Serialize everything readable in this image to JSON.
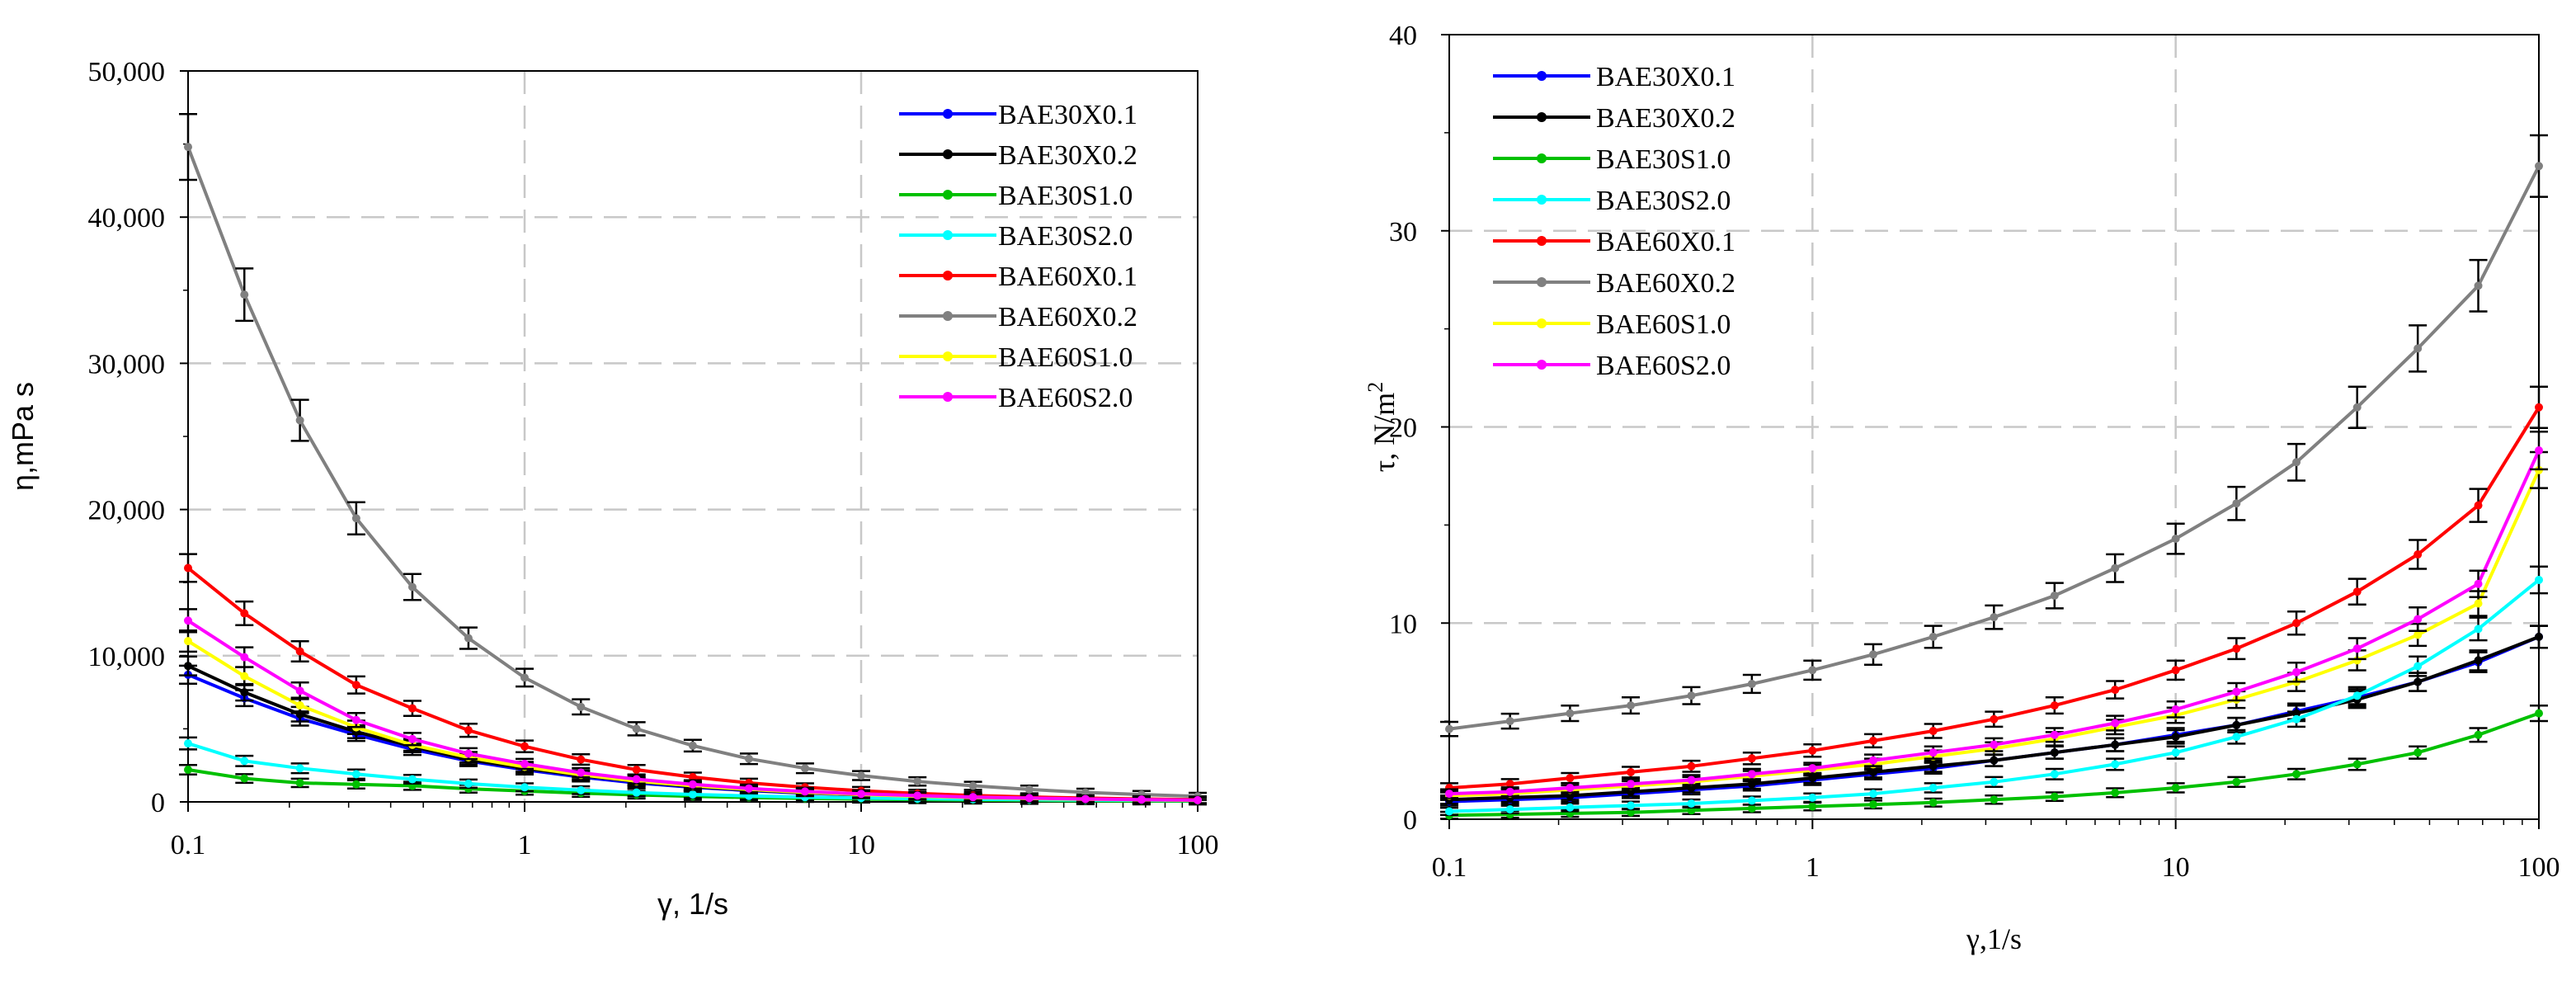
{
  "chart_data": [
    {
      "type": "line",
      "ylabel": "η,mPa s",
      "xlabel": "γ, 1/s",
      "xscale": "log",
      "xlim": [
        0.1,
        100
      ],
      "ylim": [
        0,
        50000
      ],
      "grid": "dashed, at decades and y ticks",
      "legend_position": "top-right",
      "x_ticks": [
        "0.1",
        "1",
        "10",
        "100"
      ],
      "y_ticks": [
        "0",
        "10,000",
        "20,000",
        "30,000",
        "40,000",
        "50,000"
      ],
      "x": [
        0.1,
        0.147,
        0.215,
        0.316,
        0.464,
        0.681,
        1,
        1.47,
        2.15,
        3.16,
        4.64,
        6.81,
        10,
        14.7,
        21.5,
        31.6,
        46.4,
        68.1,
        100
      ],
      "series": [
        {
          "name": "BAE30X0.1",
          "color": "#0000ff",
          "values": [
            8700,
            7100,
            5700,
            4600,
            3600,
            2800,
            2200,
            1700,
            1300,
            1000,
            780,
            600,
            470,
            360,
            280,
            210,
            160,
            120,
            90
          ]
        },
        {
          "name": "BAE30X0.2",
          "color": "#000000",
          "values": [
            9300,
            7500,
            6000,
            4800,
            3800,
            2900,
            2300,
            1800,
            1400,
            1050,
            820,
            630,
            490,
            380,
            290,
            220,
            170,
            130,
            95
          ]
        },
        {
          "name": "BAE30S1.0",
          "color": "#00c000",
          "values": [
            2200,
            1600,
            1300,
            1200,
            1100,
            900,
            750,
            600,
            480,
            380,
            300,
            240,
            190,
            150,
            120,
            95,
            75,
            60,
            55
          ]
        },
        {
          "name": "BAE30S2.0",
          "color": "#00ffff",
          "values": [
            4000,
            2800,
            2300,
            1900,
            1550,
            1250,
            1000,
            800,
            640,
            510,
            410,
            330,
            270,
            220,
            180,
            150,
            125,
            110,
            100
          ]
        },
        {
          "name": "BAE60X0.1",
          "color": "#ff0000",
          "values": [
            16000,
            12900,
            10300,
            8000,
            6400,
            4900,
            3800,
            2900,
            2200,
            1700,
            1300,
            1000,
            760,
            580,
            440,
            340,
            260,
            200,
            150
          ]
        },
        {
          "name": "BAE60X0.2",
          "color": "#808080",
          "values": [
            44800,
            34700,
            26100,
            19400,
            14700,
            11200,
            8500,
            6500,
            5000,
            3850,
            2950,
            2300,
            1800,
            1400,
            1100,
            850,
            650,
            500,
            380
          ]
        },
        {
          "name": "BAE60S1.0",
          "color": "#ffff00",
          "values": [
            11000,
            8600,
            6600,
            5100,
            3900,
            3050,
            2400,
            1850,
            1420,
            1100,
            850,
            650,
            500,
            390,
            300,
            230,
            180,
            140,
            110
          ]
        },
        {
          "name": "BAE60S2.0",
          "color": "#ff00ff",
          "values": [
            12400,
            9900,
            7600,
            5600,
            4300,
            3300,
            2600,
            2000,
            1550,
            1200,
            920,
            710,
            550,
            430,
            330,
            260,
            200,
            160,
            120
          ]
        }
      ]
    },
    {
      "type": "line",
      "ylabel": "τ, N/m",
      "ylabel_sup": "2",
      "xlabel": "γ,1/s",
      "xscale": "log",
      "xlim": [
        0.1,
        100
      ],
      "ylim": [
        0,
        40
      ],
      "grid": "dashed, at decades and y ticks",
      "legend_position": "top-left",
      "x_ticks": [
        "0.1",
        "1",
        "10",
        "100"
      ],
      "y_ticks": [
        "0",
        "10",
        "20",
        "30",
        "40"
      ],
      "x": [
        0.1,
        0.147,
        0.215,
        0.316,
        0.464,
        0.681,
        1,
        1.47,
        2.15,
        3.16,
        4.64,
        6.81,
        10,
        14.7,
        21.5,
        31.6,
        46.4,
        68.1,
        100
      ],
      "series": [
        {
          "name": "BAE30X0.1",
          "color": "#0000ff",
          "values": [
            0.9,
            1.0,
            1.1,
            1.3,
            1.5,
            1.7,
            2.0,
            2.3,
            2.6,
            3.0,
            3.4,
            3.8,
            4.3,
            4.8,
            5.5,
            6.2,
            7.0,
            8.0,
            9.3
          ]
        },
        {
          "name": "BAE30X0.2",
          "color": "#000000",
          "values": [
            1.0,
            1.1,
            1.2,
            1.4,
            1.6,
            1.8,
            2.1,
            2.4,
            2.7,
            3.0,
            3.4,
            3.8,
            4.2,
            4.8,
            5.4,
            6.1,
            7.0,
            8.1,
            9.3
          ]
        },
        {
          "name": "BAE30S1.0",
          "color": "#00c000",
          "values": [
            0.2,
            0.25,
            0.3,
            0.35,
            0.45,
            0.55,
            0.65,
            0.75,
            0.85,
            1.0,
            1.15,
            1.35,
            1.6,
            1.9,
            2.3,
            2.8,
            3.4,
            4.3,
            5.4
          ]
        },
        {
          "name": "BAE30S2.0",
          "color": "#00ffff",
          "values": [
            0.4,
            0.5,
            0.6,
            0.7,
            0.8,
            0.95,
            1.1,
            1.3,
            1.6,
            1.9,
            2.3,
            2.8,
            3.4,
            4.2,
            5.1,
            6.3,
            7.8,
            9.7,
            12.2
          ]
        },
        {
          "name": "BAE60X0.1",
          "color": "#ff0000",
          "values": [
            1.6,
            1.8,
            2.1,
            2.4,
            2.7,
            3.1,
            3.5,
            4.0,
            4.5,
            5.1,
            5.8,
            6.6,
            7.6,
            8.7,
            10.0,
            11.6,
            13.5,
            16.0,
            21.0
          ]
        },
        {
          "name": "BAE60X0.2",
          "color": "#808080",
          "values": [
            4.6,
            5.0,
            5.4,
            5.8,
            6.3,
            6.9,
            7.6,
            8.4,
            9.3,
            10.3,
            11.4,
            12.8,
            14.3,
            16.1,
            18.2,
            21.0,
            24.0,
            27.2,
            33.3
          ]
        },
        {
          "name": "BAE60S1.0",
          "color": "#ffff00",
          "values": [
            1.2,
            1.3,
            1.5,
            1.7,
            1.9,
            2.2,
            2.5,
            2.8,
            3.2,
            3.6,
            4.1,
            4.7,
            5.3,
            6.1,
            7.0,
            8.1,
            9.4,
            11.0,
            17.8
          ]
        },
        {
          "name": "BAE60S2.0",
          "color": "#ff00ff",
          "values": [
            1.3,
            1.4,
            1.6,
            1.8,
            2.0,
            2.3,
            2.6,
            3.0,
            3.4,
            3.8,
            4.3,
            4.9,
            5.6,
            6.5,
            7.5,
            8.7,
            10.2,
            12.0,
            18.8
          ]
        }
      ]
    }
  ]
}
